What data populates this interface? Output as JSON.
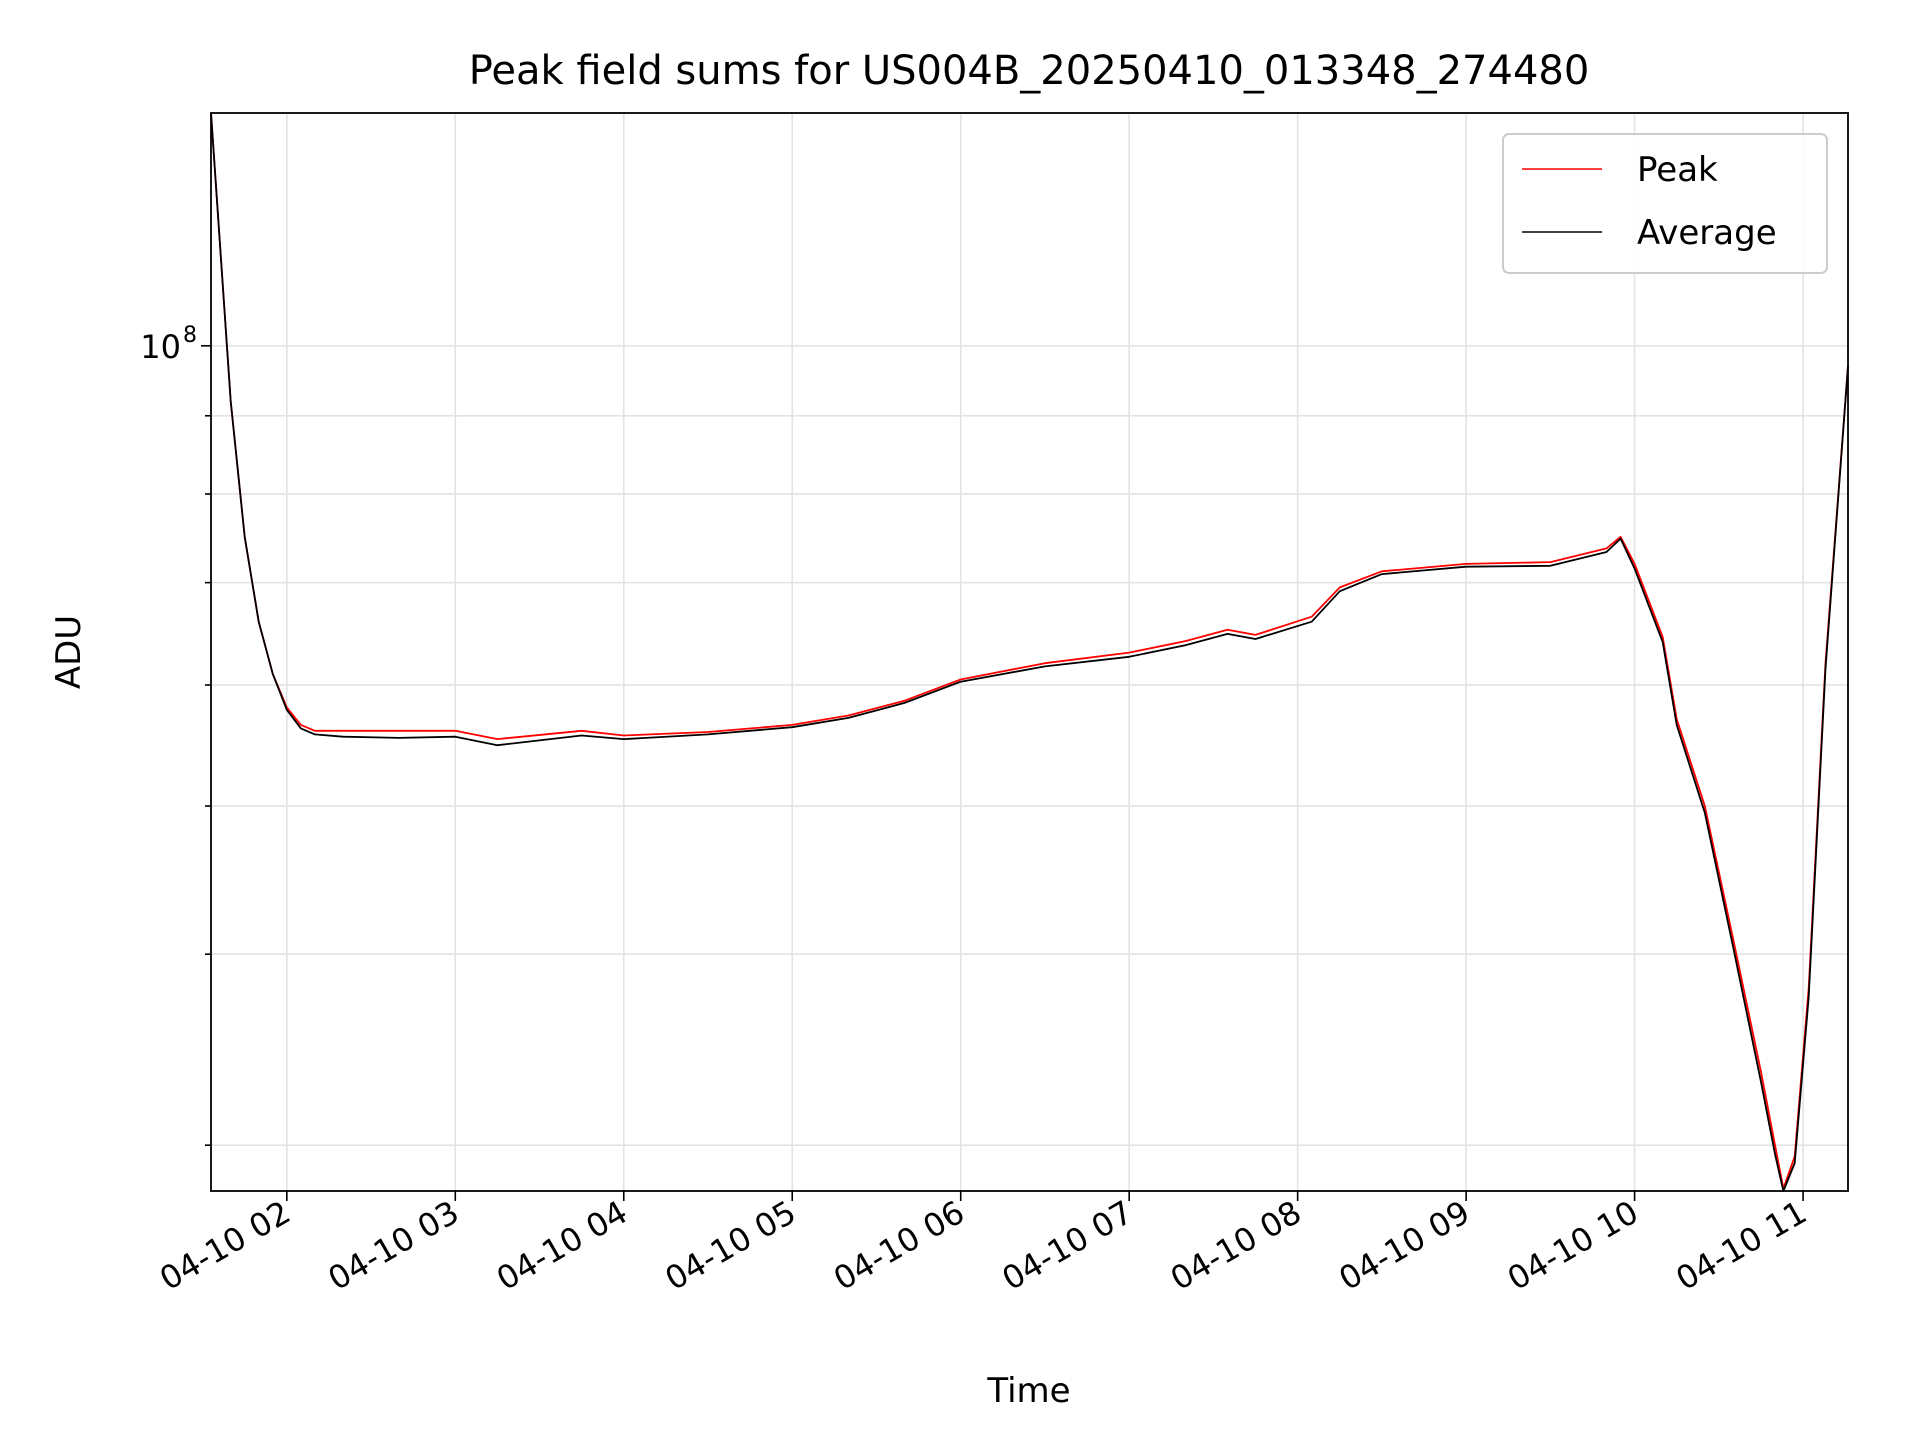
{
  "chart_data": {
    "type": "line",
    "title": "Peak field sums for US004B_20250410_013348_274480",
    "xlabel": "Time",
    "ylabel": "ADU",
    "yscale": "log",
    "grid": true,
    "legend_placement": "top-right",
    "xlim": [
      "2025-04-10 01:33",
      "2025-04-10 11:16"
    ],
    "ylim": [
      28000000,
      142000000
    ],
    "x_ticks": [
      "04-10 02",
      "04-10 03",
      "04-10 04",
      "04-10 05",
      "04-10 06",
      "04-10 07",
      "04-10 08",
      "04-10 09",
      "04-10 10",
      "04-10 11"
    ],
    "y_ticks": [
      {
        "value": 100000000,
        "base": "10",
        "exp": "8"
      }
    ],
    "series": [
      {
        "name": "Peak",
        "color": "#ff0000",
        "x": [
          "2025-04-10 01:33",
          "2025-04-10 01:36",
          "2025-04-10 01:40",
          "2025-04-10 01:45",
          "2025-04-10 01:50",
          "2025-04-10 01:55",
          "2025-04-10 02:00",
          "2025-04-10 02:05",
          "2025-04-10 02:10",
          "2025-04-10 02:20",
          "2025-04-10 02:40",
          "2025-04-10 03:00",
          "2025-04-10 03:15",
          "2025-04-10 03:45",
          "2025-04-10 04:00",
          "2025-04-10 04:30",
          "2025-04-10 05:00",
          "2025-04-10 05:20",
          "2025-04-10 05:40",
          "2025-04-10 06:00",
          "2025-04-10 06:30",
          "2025-04-10 07:00",
          "2025-04-10 07:20",
          "2025-04-10 07:35",
          "2025-04-10 07:45",
          "2025-04-10 08:05",
          "2025-04-10 08:15",
          "2025-04-10 08:30",
          "2025-04-10 09:00",
          "2025-04-10 09:30",
          "2025-04-10 09:50",
          "2025-04-10 09:55",
          "2025-04-10 10:00",
          "2025-04-10 10:10",
          "2025-04-10 10:15",
          "2025-04-10 10:25",
          "2025-04-10 10:35",
          "2025-04-10 10:45",
          "2025-04-10 10:50",
          "2025-04-10 10:53",
          "2025-04-10 10:57",
          "2025-04-10 11:02",
          "2025-04-10 11:08",
          "2025-04-10 11:16"
        ],
        "values": [
          142000000,
          118000000,
          92000000,
          75000000,
          66000000,
          61000000,
          58000000,
          56500000,
          56000000,
          56000000,
          56000000,
          56000000,
          55300000,
          56000000,
          55600000,
          55900000,
          56500000,
          57300000,
          58600000,
          60500000,
          62000000,
          63000000,
          64100000,
          65200000,
          64700000,
          66500000,
          69500000,
          71200000,
          72000000,
          72200000,
          73700000,
          75000000,
          72000000,
          64500000,
          57000000,
          50000000,
          41000000,
          33500000,
          30000000,
          28100000,
          29500000,
          38000000,
          62000000,
          97000000
        ]
      },
      {
        "name": "Average",
        "color": "#000000",
        "x": [
          "2025-04-10 01:33",
          "2025-04-10 01:36",
          "2025-04-10 01:40",
          "2025-04-10 01:45",
          "2025-04-10 01:50",
          "2025-04-10 01:55",
          "2025-04-10 02:00",
          "2025-04-10 02:05",
          "2025-04-10 02:10",
          "2025-04-10 02:20",
          "2025-04-10 02:40",
          "2025-04-10 03:00",
          "2025-04-10 03:15",
          "2025-04-10 03:45",
          "2025-04-10 04:00",
          "2025-04-10 04:30",
          "2025-04-10 05:00",
          "2025-04-10 05:20",
          "2025-04-10 05:40",
          "2025-04-10 06:00",
          "2025-04-10 06:30",
          "2025-04-10 07:00",
          "2025-04-10 07:20",
          "2025-04-10 07:35",
          "2025-04-10 07:45",
          "2025-04-10 08:05",
          "2025-04-10 08:15",
          "2025-04-10 08:30",
          "2025-04-10 09:00",
          "2025-04-10 09:30",
          "2025-04-10 09:50",
          "2025-04-10 09:55",
          "2025-04-10 10:00",
          "2025-04-10 10:10",
          "2025-04-10 10:15",
          "2025-04-10 10:25",
          "2025-04-10 10:35",
          "2025-04-10 10:45",
          "2025-04-10 10:50",
          "2025-04-10 10:53",
          "2025-04-10 10:57",
          "2025-04-10 11:02",
          "2025-04-10 11:08",
          "2025-04-10 11:16"
        ],
        "values": [
          142000000,
          118000000,
          92000000,
          75000000,
          66000000,
          61000000,
          57800000,
          56200000,
          55700000,
          55500000,
          55400000,
          55500000,
          54800000,
          55600000,
          55300000,
          55700000,
          56300000,
          57100000,
          58400000,
          60300000,
          61700000,
          62600000,
          63700000,
          64800000,
          64300000,
          66000000,
          69100000,
          70900000,
          71700000,
          71800000,
          73300000,
          74800000,
          71500000,
          64000000,
          56500000,
          49500000,
          40500000,
          33000000,
          29600000,
          28000000,
          29200000,
          37500000,
          61500000,
          97000000
        ]
      }
    ]
  }
}
